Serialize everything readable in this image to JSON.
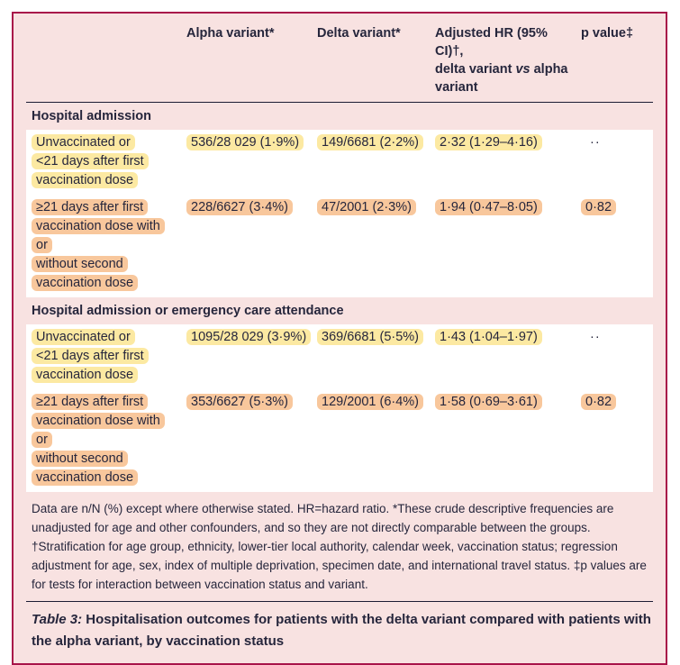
{
  "colors": {
    "border_crimson": "#a81349",
    "card_pink": "#f8e2e1",
    "row_white": "#ffffff",
    "highlight_yellow": "#fce9a2",
    "highlight_orange": "#f8c79c",
    "text_dark": "#26263c",
    "rule_dark": "#1c1c33"
  },
  "header": {
    "alpha": "Alpha variant*",
    "delta": "Delta variant*",
    "hr_pre": "Adjusted HR (95% CI)†,\ndelta variant ",
    "hr_vs": "vs",
    "hr_post": " alpha\nvariant",
    "p": "p value‡"
  },
  "table": {
    "sections": [
      {
        "title": "Hospital admission",
        "rows": [
          {
            "label": "Unvaccinated or\n<21 days after first\nvaccination dose",
            "alpha": "536/28 029 (1·9%)",
            "delta": "149/6681 (2·2%)",
            "hr": "2·32 (1·29–4·16)",
            "p": "··",
            "highlight": "yellow"
          },
          {
            "label": "≥21 days after first\nvaccination dose with or\nwithout second\nvaccination dose",
            "alpha": "228/6627 (3·4%)",
            "delta": "47/2001 (2·3%)",
            "hr": "1·94 (0·47–8·05)",
            "p": "0·82",
            "highlight": "orange"
          }
        ]
      },
      {
        "title": "Hospital admission or emergency care attendance",
        "rows": [
          {
            "label": "Unvaccinated or\n<21 days after first\nvaccination dose",
            "alpha": "1095/28 029 (3·9%)",
            "delta": "369/6681 (5·5%)",
            "hr": "1·43 (1·04–1·97)",
            "p": "··",
            "highlight": "yellow"
          },
          {
            "label": "≥21 days after first\nvaccination dose with or\nwithout second\nvaccination dose",
            "alpha": "353/6627 (5·3%)",
            "delta": "129/2001 (6·4%)",
            "hr": "1·58 (0·69–3·61)",
            "p": "0·82",
            "highlight": "orange"
          }
        ]
      }
    ],
    "footnote": "Data are n/N (%) except where otherwise stated. HR=hazard ratio. *These crude descriptive frequencies are unadjusted for age and other confounders, and so they are not directly comparable between the groups. †Stratification for age group, ethnicity, lower-tier local authority, calendar week, vaccination status; regression adjustment for age, sex, index of multiple deprivation, specimen date, and international travel status. ‡p values are for tests for interaction between vaccination status and variant.",
    "caption_label": "Table 3:",
    "caption_rest": " Hospitalisation outcomes for patients with the delta variant compared with patients with the alpha variant, by vaccination status"
  }
}
